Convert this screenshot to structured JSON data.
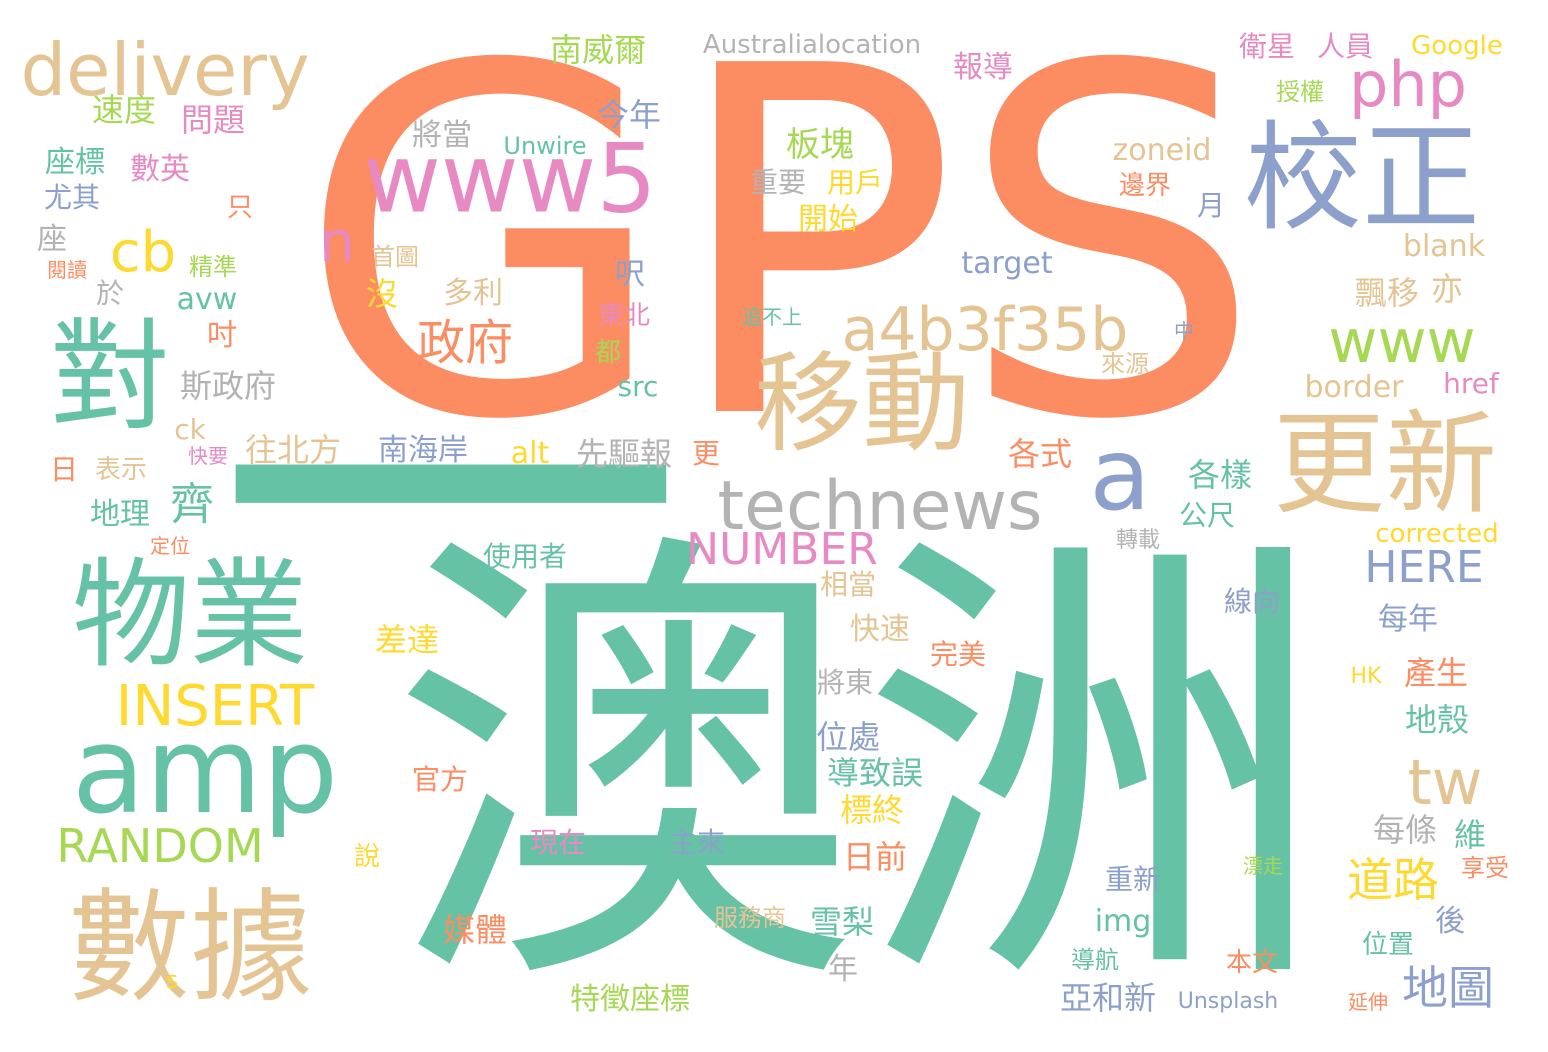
{
  "palette": {
    "orange": "#fc8d62",
    "teal": "#66c2a5",
    "tan": "#e5c494",
    "blue": "#8da0cb",
    "pink": "#e78ac3",
    "green": "#a6d854",
    "yellow": "#ffd92f",
    "gray": "#b3b3b3"
  },
  "words": [
    {
      "id": "gps",
      "text": "GPS",
      "color": "orange"
    },
    {
      "id": "aozhou",
      "text": "澳洲",
      "color": "teal"
    },
    {
      "id": "dash",
      "text": "一",
      "color": "teal"
    },
    {
      "id": "shuju",
      "text": "數據",
      "color": "tan"
    },
    {
      "id": "wuye",
      "text": "物業",
      "color": "teal"
    },
    {
      "id": "dui",
      "text": "對",
      "color": "teal"
    },
    {
      "id": "amp",
      "text": "amp",
      "color": "teal"
    },
    {
      "id": "www5",
      "text": "www5",
      "color": "pink"
    },
    {
      "id": "jiaozheng",
      "text": "校正",
      "color": "blue"
    },
    {
      "id": "yidong",
      "text": "移動",
      "color": "tan"
    },
    {
      "id": "gengxin",
      "text": "更新",
      "color": "tan"
    },
    {
      "id": "delivery",
      "text": "delivery",
      "color": "tan"
    },
    {
      "id": "technews",
      "text": "technews",
      "color": "gray"
    },
    {
      "id": "a4b3f35b",
      "text": "a4b3f35b",
      "color": "tan"
    },
    {
      "id": "php",
      "text": "php",
      "color": "pink"
    },
    {
      "id": "www",
      "text": "www",
      "color": "green"
    },
    {
      "id": "a",
      "text": "a",
      "color": "blue"
    },
    {
      "id": "cb",
      "text": "cb",
      "color": "yellow"
    },
    {
      "id": "n",
      "text": "n",
      "color": "pink"
    },
    {
      "id": "insert",
      "text": "INSERT",
      "color": "yellow"
    },
    {
      "id": "random",
      "text": "RANDOM",
      "color": "green"
    },
    {
      "id": "tw",
      "text": "tw",
      "color": "tan"
    },
    {
      "id": "number",
      "text": "NUMBER",
      "color": "pink"
    },
    {
      "id": "here",
      "text": "HERE",
      "color": "blue"
    },
    {
      "id": "zhengfu",
      "text": "政府",
      "color": "orange"
    },
    {
      "id": "daolu",
      "text": "道路",
      "color": "yellow"
    },
    {
      "id": "ditu",
      "text": "地圖",
      "color": "blue"
    },
    {
      "id": "qi",
      "text": "齊",
      "color": "teal"
    },
    {
      "id": "bankuai",
      "text": "板塊",
      "color": "green"
    },
    {
      "id": "nanweier",
      "text": "南威爾",
      "color": "green"
    },
    {
      "id": "australialocation",
      "text": "Australialocation",
      "color": "gray"
    },
    {
      "id": "baodao",
      "text": "報導",
      "color": "pink"
    },
    {
      "id": "weixing",
      "text": "衛星",
      "color": "pink"
    },
    {
      "id": "renyuan",
      "text": "人員",
      "color": "pink"
    },
    {
      "id": "google",
      "text": "Google",
      "color": "yellow"
    },
    {
      "id": "shouquan",
      "text": "授權",
      "color": "green"
    },
    {
      "id": "sudu",
      "text": "速度",
      "color": "green"
    },
    {
      "id": "wenti",
      "text": "問題",
      "color": "pink"
    },
    {
      "id": "zuobiao",
      "text": "座標",
      "color": "teal"
    },
    {
      "id": "shuying",
      "text": "數英",
      "color": "pink"
    },
    {
      "id": "youqi",
      "text": "尤其",
      "color": "blue"
    },
    {
      "id": "zhi",
      "text": "只",
      "color": "orange"
    },
    {
      "id": "zuo",
      "text": "座",
      "color": "gray"
    },
    {
      "id": "shoutu",
      "text": "首圖",
      "color": "tan"
    },
    {
      "id": "yuedu",
      "text": "閱讀",
      "color": "orange"
    },
    {
      "id": "jingzhun",
      "text": "精準",
      "color": "green"
    },
    {
      "id": "yu",
      "text": "於",
      "color": "gray"
    },
    {
      "id": "avw",
      "text": "avw",
      "color": "teal"
    },
    {
      "id": "dou",
      "text": "吋",
      "color": "orange"
    },
    {
      "id": "sizhengfu",
      "text": "斯政府",
      "color": "gray"
    },
    {
      "id": "ck",
      "text": "ck",
      "color": "tan"
    },
    {
      "id": "kuaiyao",
      "text": "快要",
      "color": "pink"
    },
    {
      "id": "ri",
      "text": "日",
      "color": "orange"
    },
    {
      "id": "biaoshi",
      "text": "表示",
      "color": "tan"
    },
    {
      "id": "wangbeifang",
      "text": "往北方",
      "color": "tan"
    },
    {
      "id": "dili",
      "text": "地理",
      "color": "teal"
    },
    {
      "id": "dingwei",
      "text": "定位",
      "color": "orange"
    },
    {
      "id": "jiangdang",
      "text": "將當",
      "color": "gray"
    },
    {
      "id": "unwire",
      "text": "Unwire",
      "color": "teal"
    },
    {
      "id": "jinnian",
      "text": "今年",
      "color": "blue"
    },
    {
      "id": "zhongyao",
      "text": "重要",
      "color": "gray"
    },
    {
      "id": "yonghu",
      "text": "用戶",
      "color": "yellow"
    },
    {
      "id": "kaishi",
      "text": "開始",
      "color": "yellow"
    },
    {
      "id": "zoneid",
      "text": "zoneid",
      "color": "tan"
    },
    {
      "id": "bianjie",
      "text": "邊界",
      "color": "orange"
    },
    {
      "id": "yue",
      "text": "月",
      "color": "blue"
    },
    {
      "id": "blank",
      "text": "blank",
      "color": "tan"
    },
    {
      "id": "target",
      "text": "target",
      "color": "blue"
    },
    {
      "id": "mei",
      "text": "沒",
      "color": "yellow"
    },
    {
      "id": "duoli",
      "text": "多利",
      "color": "tan"
    },
    {
      "id": "ni",
      "text": "呎",
      "color": "blue"
    },
    {
      "id": "dongbei",
      "text": "東北",
      "color": "pink"
    },
    {
      "id": "dou2",
      "text": "都",
      "color": "green"
    },
    {
      "id": "src",
      "text": "src",
      "color": "teal"
    },
    {
      "id": "zhuibushang",
      "text": "追不上",
      "color": "teal"
    },
    {
      "id": "zhong",
      "text": "中",
      "color": "blue"
    },
    {
      "id": "laiyuan",
      "text": "來源",
      "color": "tan"
    },
    {
      "id": "piaoyi",
      "text": "飄移",
      "color": "tan"
    },
    {
      "id": "yi",
      "text": "亦",
      "color": "tan"
    },
    {
      "id": "border",
      "text": "border",
      "color": "tan"
    },
    {
      "id": "href",
      "text": "href",
      "color": "pink"
    },
    {
      "id": "nanhaian",
      "text": "南海岸",
      "color": "blue"
    },
    {
      "id": "alt",
      "text": "alt",
      "color": "yellow"
    },
    {
      "id": "xianqubao",
      "text": "先驅報",
      "color": "gray"
    },
    {
      "id": "geng",
      "text": "更",
      "color": "orange"
    },
    {
      "id": "geshi",
      "text": "各式",
      "color": "orange"
    },
    {
      "id": "geyang",
      "text": "各樣",
      "color": "teal"
    },
    {
      "id": "gongchi",
      "text": "公尺",
      "color": "teal"
    },
    {
      "id": "zhuanzai",
      "text": "轉載",
      "color": "gray"
    },
    {
      "id": "corrected",
      "text": "corrected",
      "color": "yellow"
    },
    {
      "id": "shiyongzhe",
      "text": "使用者",
      "color": "teal"
    },
    {
      "id": "xiangdang",
      "text": "相當",
      "color": "tan"
    },
    {
      "id": "kuaisu",
      "text": "快速",
      "color": "tan"
    },
    {
      "id": "chada",
      "text": "差達",
      "color": "yellow"
    },
    {
      "id": "wanmei",
      "text": "完美",
      "color": "orange"
    },
    {
      "id": "xianxiang",
      "text": "線向",
      "color": "blue"
    },
    {
      "id": "meinian",
      "text": "每年",
      "color": "blue"
    },
    {
      "id": "chansheng",
      "text": "產生",
      "color": "orange"
    },
    {
      "id": "hk",
      "text": "HK",
      "color": "yellow"
    },
    {
      "id": "jiangdong",
      "text": "將東",
      "color": "gray"
    },
    {
      "id": "weichu",
      "text": "位處",
      "color": "blue"
    },
    {
      "id": "diqiao",
      "text": "地殼",
      "color": "teal"
    },
    {
      "id": "daozhiwu",
      "text": "導致誤",
      "color": "teal"
    },
    {
      "id": "guanfang",
      "text": "官方",
      "color": "orange"
    },
    {
      "id": "biaozhong",
      "text": "標終",
      "color": "yellow"
    },
    {
      "id": "meitiao",
      "text": "每條",
      "color": "gray"
    },
    {
      "id": "wei",
      "text": "維",
      "color": "teal"
    },
    {
      "id": "xianzai",
      "text": "現在",
      "color": "pink"
    },
    {
      "id": "zhulai",
      "text": "主來",
      "color": "blue"
    },
    {
      "id": "riqian",
      "text": "日前",
      "color": "orange"
    },
    {
      "id": "shuo",
      "text": "說",
      "color": "yellow"
    },
    {
      "id": "chongxin",
      "text": "重新",
      "color": "blue"
    },
    {
      "id": "piaozou",
      "text": "漂走",
      "color": "green"
    },
    {
      "id": "xiangshou",
      "text": "享受",
      "color": "orange"
    },
    {
      "id": "meiti",
      "text": "媒體",
      "color": "orange"
    },
    {
      "id": "fuwushang",
      "text": "服務商",
      "color": "tan"
    },
    {
      "id": "xueli",
      "text": "雪梨",
      "color": "teal"
    },
    {
      "id": "img",
      "text": "img",
      "color": "teal"
    },
    {
      "id": "hou",
      "text": "後",
      "color": "blue"
    },
    {
      "id": "nian",
      "text": "年",
      "color": "gray"
    },
    {
      "id": "daohang",
      "text": "導航",
      "color": "teal"
    },
    {
      "id": "weizhi",
      "text": "位置",
      "color": "teal"
    },
    {
      "id": "benwen",
      "text": "本文",
      "color": "orange"
    },
    {
      "id": "s",
      "text": "s",
      "color": "yellow"
    },
    {
      "id": "tezheng",
      "text": "特徵座標",
      "color": "green"
    },
    {
      "id": "yahexin",
      "text": "亞和新",
      "color": "blue"
    },
    {
      "id": "unsplash",
      "text": "Unsplash",
      "color": "blue"
    },
    {
      "id": "yanshen",
      "text": "延伸",
      "color": "orange"
    }
  ]
}
